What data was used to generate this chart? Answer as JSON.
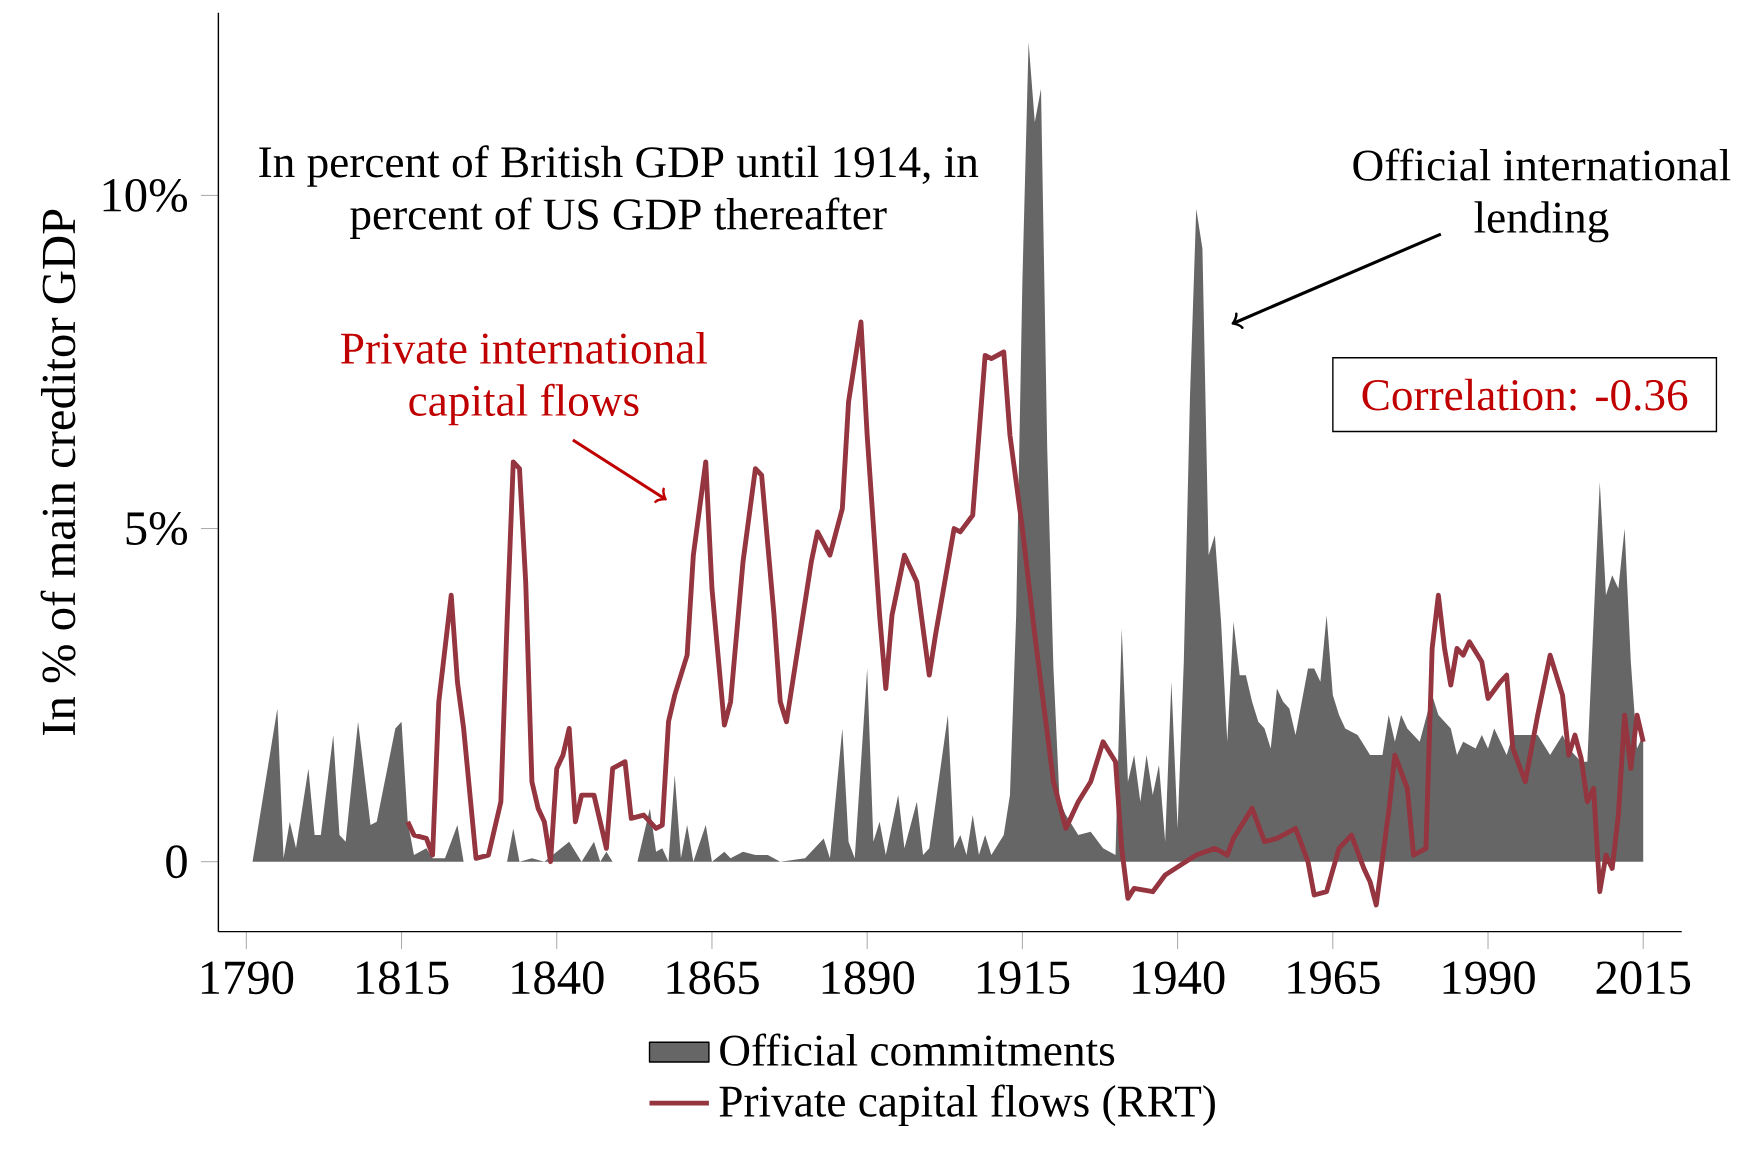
{
  "chart_data": {
    "type": "line",
    "ylabel": "In % of main creditor GDP",
    "xlim": [
      1785.5,
      2021.2
    ],
    "ylim": [
      -1.05,
      12.74
    ],
    "xticks": [
      1790,
      1815,
      1840,
      1865,
      1890,
      1915,
      1940,
      1965,
      1990,
      2015
    ],
    "yticks": [
      {
        "value": 0,
        "label": "0"
      },
      {
        "value": 5,
        "label": "5%"
      },
      {
        "value": 10,
        "label": "10%"
      }
    ],
    "legend": "bottom",
    "series": [
      {
        "name": "Official commitments",
        "type": "area",
        "color": "#666666",
        "x": [
          1791,
          1795,
          1796,
          1797,
          1798,
          1800,
          1801,
          1802,
          1804,
          1805,
          1806,
          1808,
          1810,
          1811,
          1814,
          1815,
          1816,
          1817,
          1819,
          1820,
          1822,
          1824,
          1825,
          1832,
          1833,
          1834,
          1836,
          1838,
          1842,
          1844,
          1846,
          1847,
          1848,
          1849,
          1853,
          1855,
          1856,
          1857,
          1858,
          1859,
          1860,
          1861,
          1862,
          1864,
          1865,
          1867,
          1868,
          1870,
          1872,
          1874,
          1876,
          1880,
          1883,
          1884,
          1886,
          1887,
          1888,
          1890,
          1891,
          1892,
          1893,
          1895,
          1896,
          1898,
          1899,
          1900,
          1903,
          1904,
          1905,
          1906,
          1907,
          1908,
          1909,
          1910,
          1912,
          1913,
          1914,
          1915,
          1916,
          1917,
          1918,
          1919,
          1920,
          1921,
          1922,
          1924,
          1926,
          1928,
          1930,
          1931,
          1932,
          1933,
          1934,
          1935,
          1936,
          1937,
          1938,
          1939,
          1940,
          1941,
          1942,
          1943,
          1944,
          1945,
          1946,
          1947,
          1948,
          1949,
          1950,
          1951,
          1952,
          1953,
          1954,
          1955,
          1956,
          1957,
          1958,
          1959,
          1960,
          1961,
          1962,
          1963,
          1964,
          1965,
          1966,
          1967,
          1969,
          1971,
          1973,
          1974,
          1975,
          1976,
          1977,
          1979,
          1981,
          1982,
          1984,
          1985,
          1986,
          1988,
          1989,
          1990,
          1991,
          1993,
          1994,
          1996,
          1998,
          2000,
          2002,
          2003,
          2005,
          2006,
          2007,
          2008,
          2009,
          2010,
          2011,
          2012,
          2013,
          2014,
          2015
        ],
        "values": [
          0,
          2.3,
          0.05,
          0.6,
          0.2,
          1.4,
          0.4,
          0.4,
          1.9,
          0.4,
          0.3,
          2.1,
          0.55,
          0.6,
          2.0,
          2.1,
          0.6,
          0.1,
          0.2,
          0.05,
          0.05,
          0.55,
          0,
          0,
          0.5,
          0,
          0.05,
          0,
          0.3,
          0,
          0.3,
          0,
          0.15,
          0,
          0,
          0.8,
          0.15,
          0.2,
          0,
          1.3,
          0.05,
          0.55,
          0,
          0.55,
          0,
          0.15,
          0.05,
          0.15,
          0.1,
          0.1,
          0,
          0.05,
          0.35,
          0.05,
          2.0,
          0.3,
          0.05,
          2.9,
          0.3,
          0.6,
          0.1,
          1.0,
          0.2,
          0.9,
          0.1,
          0.2,
          2.2,
          0.2,
          0.4,
          0.1,
          0.7,
          0.1,
          0.4,
          0.1,
          0.4,
          1.0,
          3.7,
          8.7,
          12.3,
          11.1,
          11.6,
          6.2,
          2.9,
          0.9,
          0.7,
          0.4,
          0.45,
          0.2,
          0.1,
          3.5,
          1.2,
          1.6,
          0.9,
          1.6,
          1.0,
          1.45,
          0.3,
          2.7,
          0.5,
          3.0,
          7.0,
          9.8,
          9.2,
          4.6,
          4.9,
          3.6,
          1.8,
          3.6,
          2.8,
          2.8,
          2.4,
          2.1,
          2.0,
          1.7,
          2.6,
          2.4,
          2.3,
          1.9,
          2.4,
          2.9,
          2.9,
          2.7,
          3.7,
          2.5,
          2.2,
          2.0,
          1.9,
          1.6,
          1.6,
          2.2,
          1.8,
          2.2,
          2.0,
          1.8,
          2.5,
          2.2,
          2.0,
          1.6,
          1.8,
          1.7,
          1.9,
          1.7,
          2.0,
          1.6,
          1.9,
          1.9,
          1.9,
          1.6,
          1.9,
          1.7,
          1.5,
          1.5,
          3.6,
          5.7,
          4.0,
          4.3,
          4.1,
          5.0,
          3.0,
          1.7,
          1.9
        ]
      },
      {
        "name": "Private capital flows (RRT)",
        "type": "line",
        "color": "#943540",
        "x": [
          1816,
          1817,
          1819,
          1820,
          1821,
          1823,
          1824,
          1825,
          1827,
          1829,
          1831,
          1832,
          1833,
          1834,
          1835,
          1836,
          1837,
          1838,
          1839,
          1840,
          1841,
          1842,
          1843,
          1844,
          1846,
          1848,
          1849,
          1851,
          1852,
          1854,
          1856,
          1857,
          1858,
          1859,
          1861,
          1862,
          1864,
          1865,
          1867,
          1868,
          1870,
          1872,
          1873,
          1875,
          1876,
          1877,
          1879,
          1881,
          1882,
          1884,
          1886,
          1887,
          1889,
          1890,
          1892,
          1893,
          1894,
          1896,
          1898,
          1900,
          1901,
          1904,
          1905,
          1907,
          1909,
          1910,
          1912,
          1913,
          1915,
          1917,
          1920,
          1922,
          1924,
          1926,
          1928,
          1930,
          1931,
          1932,
          1933,
          1936,
          1938,
          1943,
          1946,
          1948,
          1949,
          1952,
          1954,
          1956,
          1959,
          1961,
          1962,
          1964,
          1966,
          1968,
          1970,
          1971,
          1972,
          1974,
          1975,
          1977,
          1978,
          1980,
          1981,
          1982,
          1983,
          1984,
          1985,
          1986,
          1987,
          1989,
          1990,
          1992,
          1993,
          1994,
          1996,
          1998,
          2000,
          2002,
          2003,
          2004,
          2005,
          2006,
          2007,
          2008,
          2009,
          2010,
          2011,
          2012,
          2013,
          2014,
          2015
        ],
        "values": [
          0.6,
          0.4,
          0.35,
          0.1,
          2.4,
          4.0,
          2.7,
          2.0,
          0.05,
          0.1,
          0.9,
          3.6,
          6.0,
          5.9,
          4.2,
          1.2,
          0.8,
          0.6,
          0,
          1.4,
          1.6,
          2.0,
          0.6,
          1.0,
          1.0,
          0.2,
          1.4,
          1.5,
          0.65,
          0.7,
          0.5,
          0.55,
          2.1,
          2.5,
          3.1,
          4.6,
          6.0,
          4.1,
          2.05,
          2.4,
          4.5,
          5.9,
          5.8,
          3.7,
          2.4,
          2.1,
          3.3,
          4.5,
          4.95,
          4.6,
          5.3,
          6.9,
          8.1,
          6.4,
          3.7,
          2.6,
          3.7,
          4.6,
          4.2,
          2.8,
          3.4,
          5.0,
          4.95,
          5.2,
          7.6,
          7.55,
          7.65,
          6.4,
          5.0,
          3.4,
          1.2,
          0.5,
          0.9,
          1.2,
          1.8,
          1.5,
          0.2,
          -0.55,
          -0.4,
          -0.45,
          -0.2,
          0.1,
          0.2,
          0.1,
          0.35,
          0.8,
          0.3,
          0.35,
          0.5,
          0,
          -0.5,
          -0.45,
          0.2,
          0.4,
          -0.1,
          -0.3,
          -0.65,
          0.75,
          1.6,
          1.1,
          0.1,
          0.2,
          3.2,
          4.0,
          3.2,
          2.65,
          3.2,
          3.1,
          3.3,
          3.0,
          2.45,
          2.7,
          2.8,
          1.7,
          1.2,
          2.2,
          3.1,
          2.5,
          1.6,
          1.9,
          1.55,
          0.9,
          1.1,
          -0.45,
          0.1,
          -0.1,
          0.7,
          2.2,
          1.4,
          2.2,
          1.8
        ]
      }
    ],
    "annotations": [
      "In percent of British GDP until 1914, in percent of US GDP thereafter",
      "Private international capital flows",
      "Official international lending",
      "Correlation: -0.36"
    ]
  }
}
